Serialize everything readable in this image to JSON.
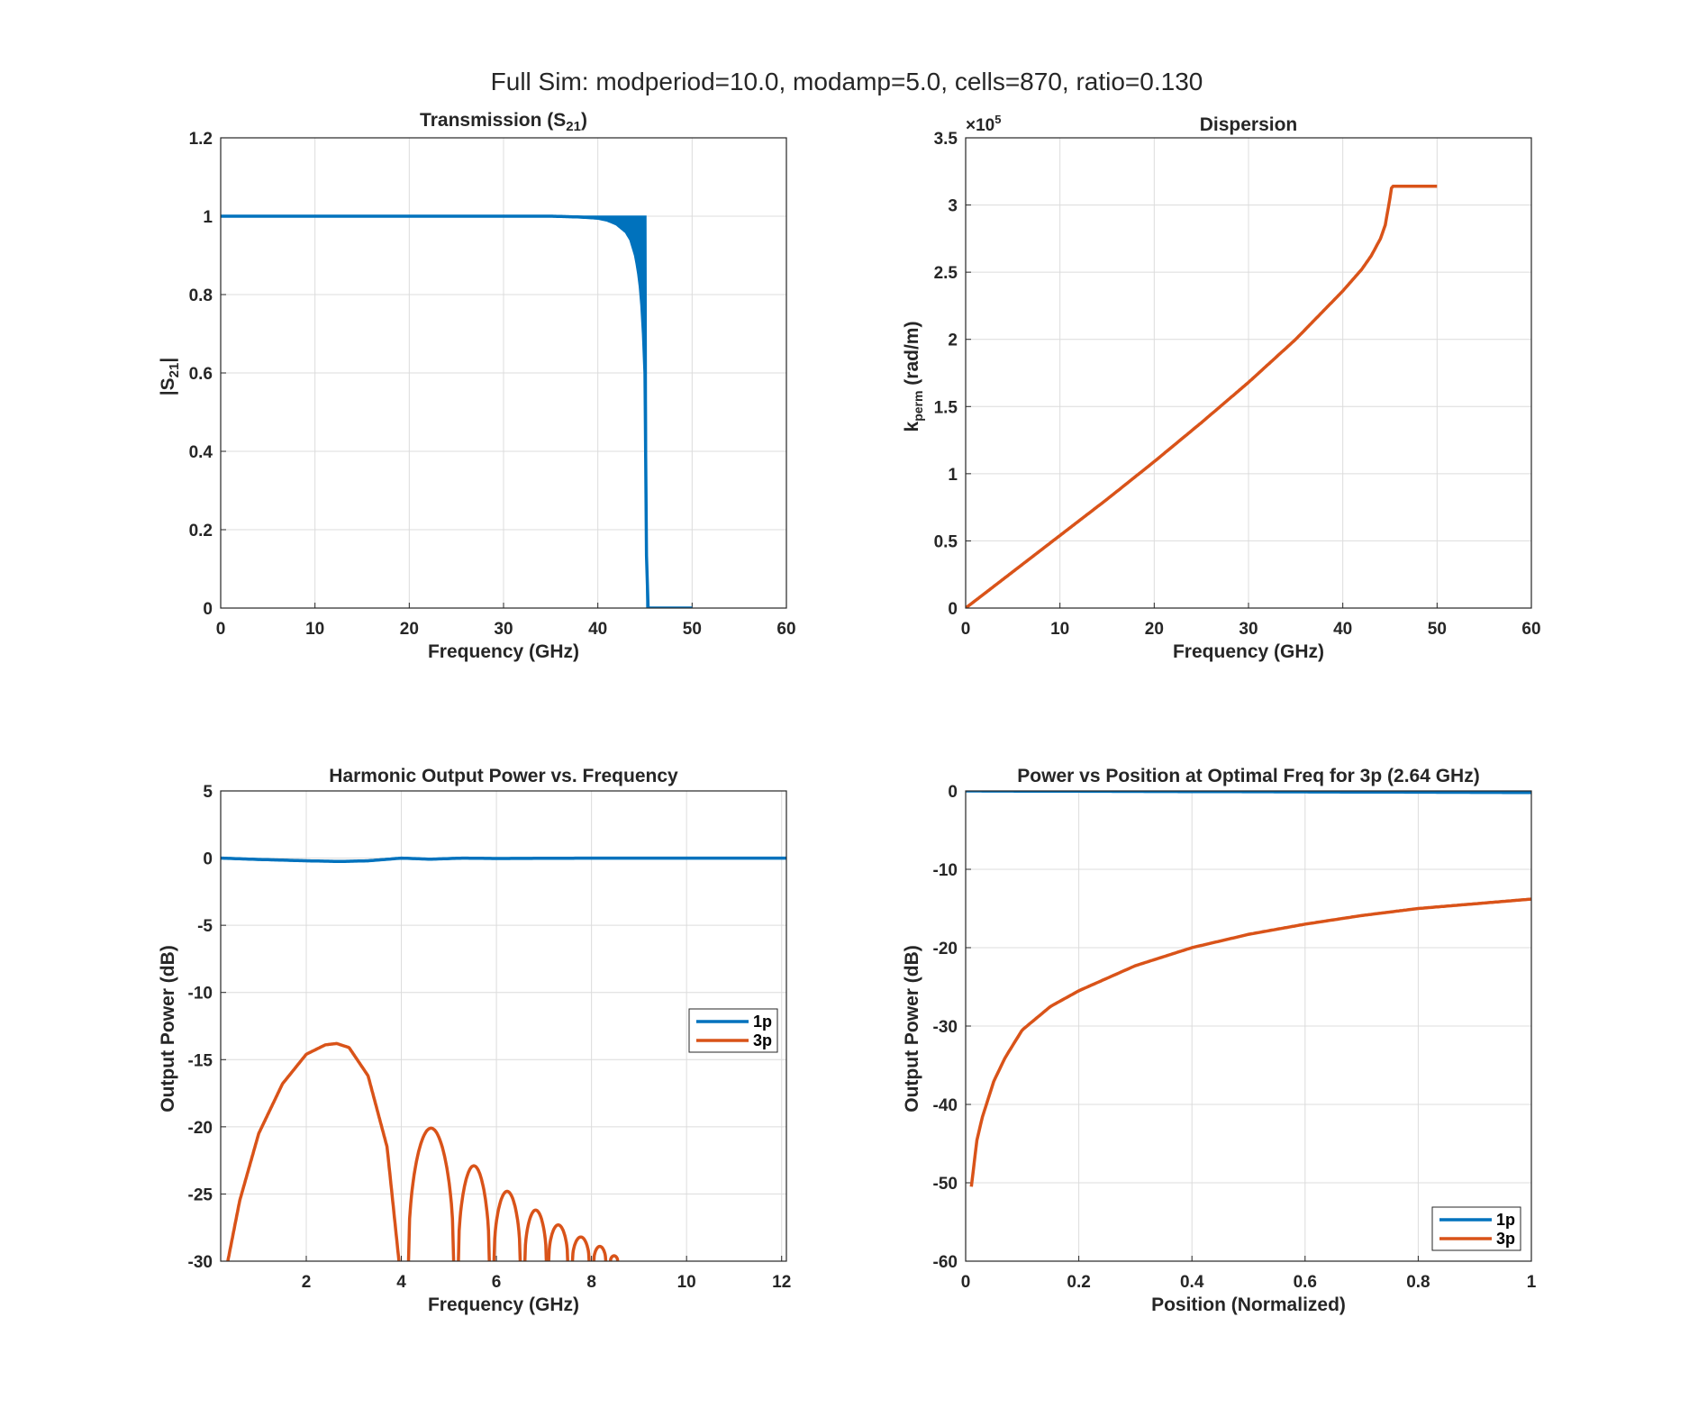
{
  "figure_title": "Full Sim: modperiod=10.0, modamp=5.0, cells=870, ratio=0.130",
  "colors": {
    "series1": "#0072BD",
    "series2": "#D95319",
    "axis": "#262626",
    "grid": "#dcdcdc"
  },
  "chart_data": [
    {
      "type": "line",
      "title": "Transmission (S21)",
      "title_text": "Transmission  (S",
      "title_sub": "21",
      "title_end": ")",
      "xlabel": "Frequency (GHz)",
      "ylabel": "|S21|",
      "ylabel_text": "|S",
      "ylabel_sub": "21",
      "ylabel_end": "|",
      "xlim": [
        0,
        60
      ],
      "ylim": [
        0,
        1.2
      ],
      "xticks": [
        0,
        10,
        20,
        30,
        40,
        50,
        60
      ],
      "xtick_labels": [
        "0",
        "10",
        "20",
        "30",
        "40",
        "50",
        "60"
      ],
      "yticks": [
        0,
        0.2,
        0.4,
        0.6,
        0.8,
        1,
        1.2
      ],
      "ytick_labels": [
        "0",
        "0.2",
        "0.4",
        "0.6",
        "0.8",
        "1",
        "1.2"
      ],
      "grid": true,
      "series": [
        {
          "color": "#0072BD",
          "x": [
            0,
            10,
            20,
            30,
            35,
            38,
            40,
            41,
            42,
            43,
            43.5,
            44,
            44.3,
            44.6,
            44.8,
            45,
            45.1,
            45.2,
            46,
            48,
            50
          ],
          "y": [
            1,
            1,
            1,
            1,
            1,
            0.998,
            0.995,
            0.99,
            0.98,
            0.96,
            0.94,
            0.9,
            0.86,
            0.8,
            0.72,
            0.6,
            0.4,
            0.0,
            0.0,
            0.0,
            0.0
          ],
          "y_upper": [
            1,
            1,
            1,
            1,
            1,
            1,
            1,
            1,
            1,
            1,
            1,
            1,
            1,
            1,
            1,
            1,
            1,
            0.0,
            0.0,
            0.0,
            0.0
          ]
        }
      ]
    },
    {
      "type": "line",
      "title": "Dispersion",
      "xlabel": "Frequency (GHz)",
      "ylabel": "kperm (rad/m)",
      "ylabel_text": "k",
      "ylabel_sub": "perm",
      "ylabel_end": "  (rad/m)",
      "exponent_label": "×10",
      "exponent_power": "5",
      "xlim": [
        0,
        60
      ],
      "ylim": [
        0,
        3.5
      ],
      "xticks": [
        0,
        10,
        20,
        30,
        40,
        50,
        60
      ],
      "xtick_labels": [
        "0",
        "10",
        "20",
        "30",
        "40",
        "50",
        "60"
      ],
      "yticks": [
        0,
        0.5,
        1,
        1.5,
        2,
        2.5,
        3,
        3.5
      ],
      "ytick_labels": [
        "0",
        "0.5",
        "1",
        "1.5",
        "2",
        "2.5",
        "3",
        "3.5"
      ],
      "grid": true,
      "series": [
        {
          "color": "#D95319",
          "x": [
            0,
            5,
            10,
            15,
            20,
            25,
            30,
            35,
            40,
            42,
            43,
            44,
            44.5,
            45,
            45.2,
            46,
            48,
            50
          ],
          "y": [
            0,
            0.27,
            0.54,
            0.81,
            1.09,
            1.38,
            1.68,
            2.0,
            2.36,
            2.52,
            2.62,
            2.75,
            2.85,
            3.05,
            3.14,
            3.14,
            3.14,
            3.14
          ]
        }
      ]
    },
    {
      "type": "line",
      "title": "Harmonic Output Power vs. Frequency",
      "xlabel": "Frequency (GHz)",
      "ylabel": "Output Power (dB)",
      "xlim": [
        0.2,
        12.1
      ],
      "ylim": [
        -30,
        5
      ],
      "xticks": [
        2,
        4,
        6,
        8,
        10,
        12
      ],
      "xtick_labels": [
        "2",
        "4",
        "6",
        "8",
        "10",
        "12"
      ],
      "yticks": [
        -30,
        -25,
        -20,
        -15,
        -10,
        -5,
        0,
        5
      ],
      "ytick_labels": [
        "-30",
        "-25",
        "-20",
        "-15",
        "-10",
        "-5",
        "0",
        "5"
      ],
      "grid": true,
      "legend_position": "right",
      "series": [
        {
          "name": "1p",
          "color": "#0072BD",
          "x": [
            0.2,
            1,
            2,
            2.7,
            3.3,
            4,
            4.6,
            5.3,
            6,
            8,
            10,
            12.1
          ],
          "y": [
            0,
            -0.1,
            -0.2,
            -0.25,
            -0.2,
            0,
            -0.08,
            0,
            -0.03,
            0,
            0,
            0
          ]
        },
        {
          "name": "3p",
          "color": "#D95319",
          "x": [
            0.35,
            0.6,
            1,
            1.5,
            2,
            2.4,
            2.64,
            2.9,
            3.3,
            3.7,
            3.95
          ],
          "y": [
            -30,
            -25.5,
            -20.5,
            -16.8,
            -14.6,
            -13.9,
            -13.8,
            -14.1,
            -16.2,
            -21.5,
            -30
          ]
        }
      ],
      "lobes": [
        {
          "start": 4.15,
          "end": 5.1,
          "peak": -20.1
        },
        {
          "start": 5.2,
          "end": 5.85,
          "peak": -22.9
        },
        {
          "start": 5.95,
          "end": 6.5,
          "peak": -24.8
        },
        {
          "start": 6.6,
          "end": 7.05,
          "peak": -26.2
        },
        {
          "start": 7.1,
          "end": 7.5,
          "peak": -27.3
        },
        {
          "start": 7.6,
          "end": 7.95,
          "peak": -28.2
        },
        {
          "start": 8.05,
          "end": 8.3,
          "peak": -28.9
        },
        {
          "start": 8.4,
          "end": 8.55,
          "peak": -29.6
        }
      ]
    },
    {
      "type": "line",
      "title": "Power vs Position at Optimal Freq for 3p (2.64 GHz)",
      "xlabel": "Position (Normalized)",
      "ylabel": "Output Power (dB)",
      "xlim": [
        0,
        1
      ],
      "ylim": [
        -60,
        0
      ],
      "xticks": [
        0,
        0.2,
        0.4,
        0.6,
        0.8,
        1
      ],
      "xtick_labels": [
        "0",
        "0.2",
        "0.4",
        "0.6",
        "0.8",
        "1"
      ],
      "yticks": [
        -60,
        -50,
        -40,
        -30,
        -20,
        -10,
        0
      ],
      "ytick_labels": [
        "-60",
        "-50",
        "-40",
        "-30",
        "-20",
        "-10",
        "0"
      ],
      "grid": true,
      "legend_position": "bottom-right",
      "series": [
        {
          "name": "1p",
          "color": "#0072BD",
          "x": [
            0,
            0.5,
            1
          ],
          "y": [
            0,
            -0.1,
            -0.2
          ]
        },
        {
          "name": "3p",
          "color": "#D95319",
          "x": [
            0.01,
            0.015,
            0.02,
            0.03,
            0.05,
            0.07,
            0.1,
            0.15,
            0.2,
            0.3,
            0.4,
            0.5,
            0.6,
            0.7,
            0.8,
            0.9,
            1.0
          ],
          "y": [
            -50.5,
            -47.5,
            -44.5,
            -41.5,
            -37,
            -34,
            -30.5,
            -27.5,
            -25.5,
            -22.3,
            -20,
            -18.3,
            -17,
            -15.9,
            -15,
            -14.4,
            -13.8
          ]
        }
      ]
    }
  ]
}
